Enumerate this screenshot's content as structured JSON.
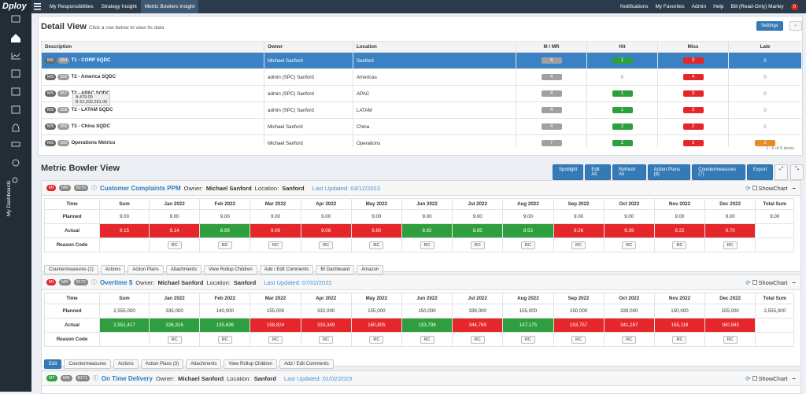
{
  "nav": {
    "logo": "Dploy",
    "tabs": [
      "My Responsibilities",
      "Strategy Insight",
      "Metric Bowlers Insight"
    ],
    "right": [
      "Notifications",
      "My Favorites",
      "Admin",
      "Help",
      "Bill (Read-Only) Marley"
    ],
    "badge": "0"
  },
  "sidebar": {
    "label": "My Dashboards"
  },
  "detail": {
    "title": "Detail View",
    "subtitle": "Click a row below to view its data",
    "settings": "Settings",
    "columns": [
      "Description",
      "Owner",
      "Location",
      "M / MR",
      "Hit",
      "Miss",
      "Late"
    ],
    "rows": [
      {
        "tags": [
          "MS",
          "954"
        ],
        "description": "T1 - CORP SQDC",
        "owner": "Michael Sanford",
        "location": "Sanford",
        "m_mr": "4",
        "hit": "1",
        "miss": "3",
        "late": "0"
      },
      {
        "tags": [
          "MS",
          "955"
        ],
        "description": "T2 - America SQDC",
        "owner": "admin (SPC) Sanford",
        "location": "Americas",
        "m_mr": "4",
        "hit": "0",
        "miss": "4",
        "late": "0"
      },
      {
        "tags": [
          "MS",
          "957"
        ],
        "description": "T2 - APAC SQDC",
        "owner": "admin (SPC) Sanford",
        "location": "APAC",
        "m_mr": "4",
        "hit": "1",
        "miss": "3",
        "late": "0"
      },
      {
        "tags": [
          "MS",
          "958"
        ],
        "description": "T2 - LATAM SQDC",
        "owner": "admin (SPC) Sanford",
        "location": "LATAM",
        "m_mr": "4",
        "hit": "1",
        "miss": "3",
        "late": "0"
      },
      {
        "tags": [
          "MS",
          "956"
        ],
        "description": "T3 - China SQDC",
        "owner": "Michael Sanford",
        "location": "China",
        "m_mr": "4",
        "hit": "2",
        "miss": "2",
        "late": "0"
      },
      {
        "tags": [
          "MS",
          "360"
        ],
        "description": "Operations Metrics",
        "owner": "Michael Sanford",
        "location": "Operations",
        "m_mr": "7",
        "hit": "2",
        "miss": "3",
        "late": "2"
      }
    ],
    "tooltip": [
      "A 479.00",
      "B 52,232,281.00"
    ],
    "pager": "1 - 6 of 6 items"
  },
  "bowler_view": {
    "title": "Metric Bowler View",
    "buttons": [
      "Spotlight",
      "Edit All",
      "Refresh All",
      "Action Plans (8)",
      "Countermeasures (7)",
      "Export"
    ]
  },
  "bowlers": [
    {
      "tags": [
        "MI",
        "MR",
        "8270"
      ],
      "name": "Customer Complaints PPM",
      "owner_label": "Owner:",
      "owner": "Michael Sanford",
      "location_label": "Location:",
      "location": "Sanford",
      "updated": "Last Updated: 03/12/2023",
      "show_chart": "ShowChart",
      "columns": [
        "Time",
        "Sum",
        "Jan 2022",
        "Feb 2022",
        "Mar 2022",
        "Apr 2022",
        "May 2022",
        "Jun 2022",
        "Jul 2022",
        "Aug 2022",
        "Sep 2022",
        "Oct 2022",
        "Nov 2022",
        "Dec 2022",
        "Total Sum"
      ],
      "row_labels": [
        "Planned",
        "Actual",
        "Reason Code"
      ],
      "planned": [
        "9.00",
        "9.00",
        "9.00",
        "9.00",
        "9.00",
        "9.00",
        "9.00",
        "9.00",
        "9.00",
        "9.00",
        "9.00",
        "9.00",
        "9.00",
        "9.00"
      ],
      "actual": [
        "9.15",
        "9.14",
        "8.99",
        "9.09",
        "9.06",
        "9.60",
        "8.92",
        "8.85",
        "8.53",
        "9.26",
        "9.39",
        "9.22",
        "9.70",
        null
      ],
      "actual_status": [
        "miss",
        "miss",
        "hit",
        "miss",
        "miss",
        "miss",
        "hit",
        "hit",
        "hit",
        "miss",
        "miss",
        "miss",
        "miss",
        null
      ],
      "reason": "RC",
      "buttons": [
        "Countermeasures (1)",
        "Actions",
        "Action Plans",
        "Attachments",
        "View Rollup Children",
        "Add / Edit Comments",
        "BI Dashboard",
        "Amazon"
      ]
    },
    {
      "tags": [
        "MI",
        "MR",
        "8172"
      ],
      "name": "Overtime $",
      "owner_label": "Owner:",
      "owner": "Michael Sanford",
      "location_label": "Location:",
      "location": "Sanford",
      "updated": "Last Updated: 07/02/2022",
      "show_chart": "ShowChart",
      "columns": [
        "Time",
        "Sum",
        "Jan 2022",
        "Feb 2022",
        "Mar 2022",
        "Apr 2022",
        "May 2022",
        "Jun 2022",
        "Jul 2022",
        "Aug 2022",
        "Sep 2022",
        "Oct 2022",
        "Nov 2022",
        "Dec 2022",
        "Total Sum"
      ],
      "row_labels": [
        "Planned",
        "Actual",
        "Reason Code"
      ],
      "planned": [
        "2,555,000",
        "335,000",
        "140,000",
        "155,000",
        "332,000",
        "155,000",
        "150,000",
        "339,000",
        "155,000",
        "150,000",
        "339,000",
        "150,000",
        "155,000",
        "2,555,000"
      ],
      "actual": [
        "2,551,417",
        "326,316",
        "135,636",
        "158,824",
        "333,349",
        "160,805",
        "133,798",
        "344,769",
        "147,175",
        "153,757",
        "341,287",
        "155,118",
        "160,583",
        null
      ],
      "actual_status": [
        "hit",
        "hit",
        "hit",
        "miss",
        "miss",
        "miss",
        "hit",
        "miss",
        "hit",
        "miss",
        "miss",
        "miss",
        "miss",
        null
      ],
      "reason": "RC",
      "buttons": [
        "Edit",
        "Countermeasures",
        "Actions",
        "Action Plans (3)",
        "Attachments",
        "View Rollup Children",
        "Add / Edit Comments"
      ]
    },
    {
      "tags": [
        "MT",
        "MR",
        "8171"
      ],
      "name": "On Time Delivery",
      "owner_label": "Owner:",
      "owner": "Michael Sanford",
      "location_label": "Location:",
      "location": "Sanford",
      "updated": "Last Updated: 01/02/2023",
      "show_chart": "ShowChart"
    }
  ]
}
